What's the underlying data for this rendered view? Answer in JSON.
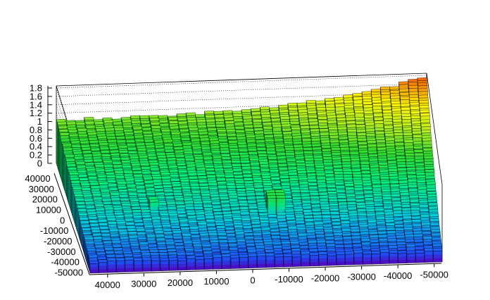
{
  "chart_data": {
    "type": "lego3d",
    "title": "",
    "xlabel": "",
    "ylabel": "",
    "zlabel": "",
    "z_ticks": [
      "0",
      "0.2",
      "0.4",
      "0.6",
      "0.8",
      "1",
      "1.2",
      "1.4",
      "1.6",
      "1.8"
    ],
    "z_range": [
      0,
      1.85
    ],
    "x_ticks": [
      "40000",
      "30000",
      "20000",
      "10000",
      "0",
      "-10000",
      "-20000",
      "-30000",
      "-40000",
      "-50000"
    ],
    "x_range": [
      45000,
      -52000
    ],
    "y_ticks": [
      "40000",
      "30000",
      "20000",
      "10000",
      "0",
      "-10000",
      "-20000",
      "-30000",
      "-40000",
      "-50000"
    ],
    "y_range": [
      45000,
      -52000
    ],
    "n_bins_x": 40,
    "n_bins_y": 40,
    "surface_model": {
      "front_edge_level": 0.25,
      "back_edge_level": 1.05,
      "top_right_peak": 1.8,
      "local_spikes": [
        {
          "x": 25000,
          "y": 8000,
          "z": 0.72
        },
        {
          "x": -8000,
          "y": 12000,
          "z": 0.85
        },
        {
          "x": 0,
          "y": -20000,
          "z": 0.45
        }
      ]
    },
    "palette": [
      "#5a00c8",
      "#2050ff",
      "#00d0e0",
      "#00f080",
      "#30e030",
      "#b0f020",
      "#ffff00",
      "#ffa000",
      "#ff3000"
    ]
  }
}
